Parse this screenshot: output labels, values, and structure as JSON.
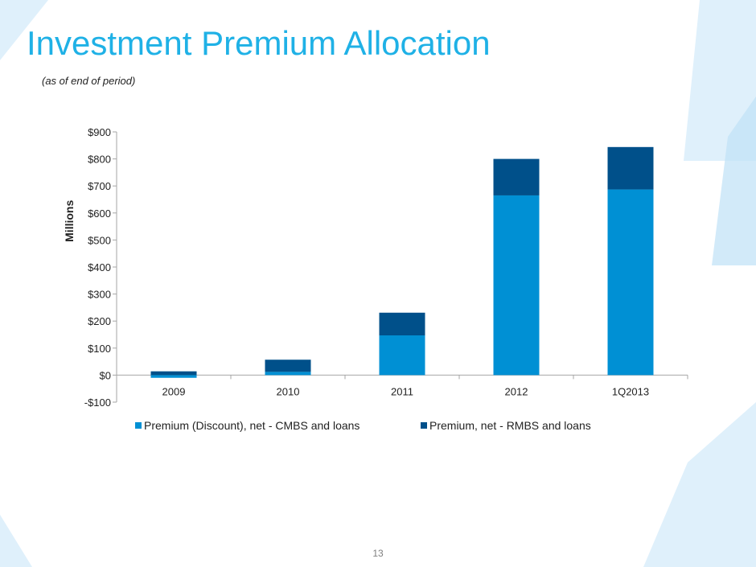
{
  "slide": {
    "title": "Investment Premium Allocation",
    "subtitle": "(as of end of period)",
    "page_number": "13"
  },
  "colors": {
    "title": "#1fb1e6",
    "series_cmbs": "#0090d4",
    "series_rmbs": "#00508a",
    "axis": "#a6a6a6",
    "bg_light": "#dff0fb",
    "bg_mid": "#bfe1f7"
  },
  "chart_data": {
    "type": "bar",
    "stacked": true,
    "categories": [
      "2009",
      "2010",
      "2011",
      "2012",
      "1Q2013"
    ],
    "series": [
      {
        "name": "Premium (Discount), net - CMBS and loans",
        "values": [
          -10,
          12,
          147,
          665,
          687
        ],
        "color": "#0090d4"
      },
      {
        "name": "Premium, net - RMBS and loans",
        "values": [
          14,
          45,
          84,
          135,
          157
        ],
        "color": "#00508a"
      }
    ],
    "ylabel": "Millions",
    "xlabel": "",
    "ylim": [
      -100,
      900
    ],
    "yticks": [
      -100,
      0,
      100,
      200,
      300,
      400,
      500,
      600,
      700,
      800,
      900
    ],
    "ytick_labels": [
      "-$100",
      "$0",
      "$100",
      "$200",
      "$300",
      "$400",
      "$500",
      "$600",
      "$700",
      "$800",
      "$900"
    ],
    "legend_position": "bottom",
    "grid": false
  }
}
